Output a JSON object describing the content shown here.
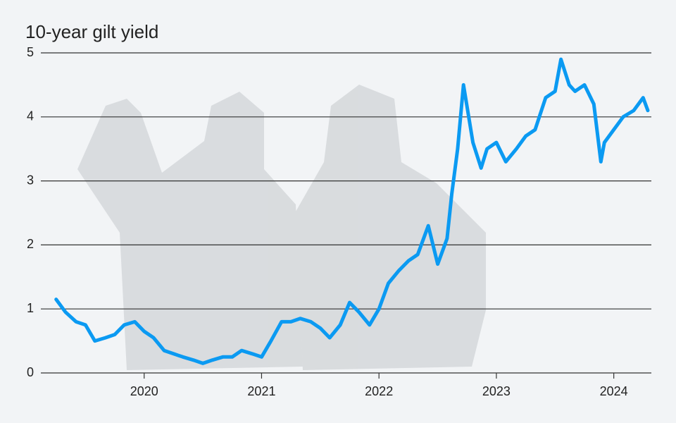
{
  "chart_data": {
    "type": "line",
    "title": "10-year gilt yield",
    "xlim": [
      2019.12,
      2024.32
    ],
    "xticks": [
      2020,
      2021,
      2022,
      2023,
      2024
    ],
    "ylim": [
      0,
      5
    ],
    "yticks": [
      0,
      1,
      2,
      3,
      4,
      5
    ],
    "grid": true,
    "series": [
      {
        "color": "#0b9af2",
        "x": [
          2019.25,
          2019.33,
          2019.42,
          2019.5,
          2019.58,
          2019.67,
          2019.75,
          2019.83,
          2019.92,
          2020.0,
          2020.08,
          2020.17,
          2020.25,
          2020.33,
          2020.42,
          2020.5,
          2020.58,
          2020.67,
          2020.75,
          2020.83,
          2020.92,
          2021.0,
          2021.08,
          2021.17,
          2021.25,
          2021.33,
          2021.42,
          2021.5,
          2021.58,
          2021.67,
          2021.75,
          2021.83,
          2021.92,
          2022.0,
          2022.08,
          2022.17,
          2022.25,
          2022.33,
          2022.42,
          2022.5,
          2022.58,
          2022.62,
          2022.67,
          2022.72,
          2022.8,
          2022.87,
          2022.92,
          2023.0,
          2023.08,
          2023.17,
          2023.25,
          2023.33,
          2023.42,
          2023.5,
          2023.55,
          2023.62,
          2023.67,
          2023.75,
          2023.83,
          2023.89,
          2023.92,
          2024.0,
          2024.08,
          2024.17,
          2024.25,
          2024.29
        ],
        "values": [
          1.15,
          0.95,
          0.8,
          0.75,
          0.5,
          0.55,
          0.6,
          0.75,
          0.8,
          0.65,
          0.55,
          0.35,
          0.3,
          0.25,
          0.2,
          0.15,
          0.2,
          0.25,
          0.25,
          0.35,
          0.3,
          0.25,
          0.5,
          0.8,
          0.8,
          0.85,
          0.8,
          0.7,
          0.55,
          0.75,
          1.1,
          0.95,
          0.75,
          1.0,
          1.4,
          1.6,
          1.75,
          1.85,
          2.3,
          1.7,
          2.1,
          2.8,
          3.5,
          4.5,
          3.6,
          3.2,
          3.5,
          3.6,
          3.3,
          3.5,
          3.7,
          3.8,
          4.3,
          4.4,
          4.9,
          4.5,
          4.4,
          4.5,
          4.2,
          3.3,
          3.6,
          3.8,
          4.0,
          4.1,
          4.3,
          4.1
        ]
      }
    ]
  }
}
